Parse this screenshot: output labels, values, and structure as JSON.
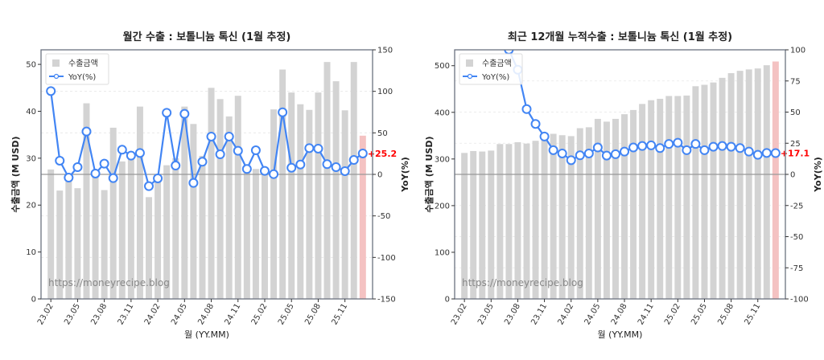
{
  "chart_data": [
    {
      "type": "bar+line",
      "title": "월간 수출 : 보톨니늄 톡신 (1월 추정)",
      "xlabel": "월 (YY.MM)",
      "ylabel": "수출금액 (M USD)",
      "y2label": "YoY(%)",
      "watermark": "https://moneyrecipe.blog",
      "categories": [
        "23.02",
        "23.03",
        "23.04",
        "23.05",
        "23.06",
        "23.07",
        "23.08",
        "23.09",
        "23.10",
        "23.11",
        "23.12",
        "24.01",
        "24.02",
        "24.03",
        "24.04",
        "24.05",
        "24.06",
        "24.07",
        "24.08",
        "24.09",
        "24.10",
        "24.11",
        "24.12",
        "25.01",
        "25.02",
        "25.03",
        "25.04",
        "25.05",
        "25.06",
        "25.07",
        "25.08",
        "25.09",
        "25.10",
        "25.11",
        "25.12",
        "26.01"
      ],
      "xticks": [
        "23.02",
        "23.05",
        "23.08",
        "23.11",
        "24.02",
        "24.05",
        "24.08",
        "24.11",
        "25.02",
        "25.05",
        "25.08",
        "25.11"
      ],
      "ylim": [
        0,
        53.1
      ],
      "yticks": [
        0,
        10,
        20,
        30,
        40,
        50
      ],
      "y2lim": [
        -150,
        150
      ],
      "y2ticks": [
        -150,
        -100,
        -50,
        0,
        50,
        100,
        150
      ],
      "series": [
        {
          "name": "수출금액",
          "kind": "bar",
          "color": "#d3d3d3",
          "highlight_last_color": "#f4c2c2",
          "values": [
            27.6,
            23.1,
            25.8,
            23.6,
            41.7,
            26.3,
            23.2,
            36.5,
            29.3,
            30.2,
            41.0,
            21.7,
            25.8,
            28.5,
            30.0,
            41.0,
            37.3,
            30.5,
            45.0,
            42.6,
            38.9,
            43.3,
            28.5,
            27.7,
            27.0,
            40.4,
            48.9,
            44.0,
            41.5,
            40.3,
            44.0,
            50.5,
            46.4,
            40.2,
            50.5,
            34.8
          ]
        },
        {
          "name": "YoY(%)",
          "kind": "line",
          "axis": "right",
          "color": "#4285f4",
          "values": [
            100.3,
            16.5,
            -3.9,
            8.7,
            51.6,
            1.0,
            12.9,
            -4.5,
            29.7,
            22.6,
            25.8,
            -14.2,
            -4.8,
            74.2,
            10.6,
            72.9,
            -10.3,
            15.2,
            45.5,
            24.2,
            45.5,
            28.4,
            6.5,
            29.0,
            4.2,
            0.3,
            74.8,
            8.0,
            11.9,
            31.6,
            31.0,
            12.3,
            8.7,
            3.9,
            17.4,
            25.2
          ]
        }
      ],
      "annotation": "+25.2",
      "legend": "top-left"
    },
    {
      "type": "bar+line",
      "title": "최근 12개월 누적수출 : 보톨니늄 톡신 (1월 추정)",
      "xlabel": "월 (YY.MM)",
      "ylabel": "수출금액 (M USD)",
      "y2label": "YoY(%)",
      "watermark": "https://moneyrecipe.blog",
      "categories": [
        "23.02",
        "23.03",
        "23.04",
        "23.05",
        "23.06",
        "23.07",
        "23.08",
        "23.09",
        "23.10",
        "23.11",
        "23.12",
        "24.01",
        "24.02",
        "24.03",
        "24.04",
        "24.05",
        "24.06",
        "24.07",
        "24.08",
        "24.09",
        "24.10",
        "24.11",
        "24.12",
        "25.01",
        "25.02",
        "25.03",
        "25.04",
        "25.05",
        "25.06",
        "25.07",
        "25.08",
        "25.09",
        "25.10",
        "25.11",
        "25.12",
        "26.01"
      ],
      "xticks": [
        "23.02",
        "23.05",
        "23.08",
        "23.11",
        "24.02",
        "24.05",
        "24.08",
        "24.11",
        "25.02",
        "25.05",
        "25.08",
        "25.11"
      ],
      "ylim": [
        0,
        534
      ],
      "yticks": [
        0,
        100,
        200,
        300,
        400,
        500
      ],
      "y2lim": [
        -100,
        100
      ],
      "y2ticks": [
        -100,
        -75,
        -50,
        -25,
        0,
        25,
        50,
        75,
        100
      ],
      "series": [
        {
          "name": "수출금액",
          "kind": "bar",
          "color": "#d3d3d3",
          "highlight_last_color": "#f4c2c2",
          "values": [
            313,
            317,
            316,
            318,
            332,
            332,
            336,
            333,
            339,
            345,
            354,
            351,
            349,
            366,
            368,
            386,
            380,
            386,
            396,
            405,
            418,
            426,
            429,
            435,
            435,
            436,
            456,
            459,
            464,
            474,
            484,
            489,
            492,
            494,
            501,
            509
          ]
        },
        {
          "name": "YoY(%)",
          "kind": "line",
          "axis": "right",
          "color": "#4285f4",
          "values": [
            null,
            null,
            null,
            null,
            null,
            100.1,
            84.0,
            52.4,
            40.5,
            30.4,
            19.4,
            16.8,
            11.4,
            15.3,
            16.8,
            21.6,
            15.1,
            16.2,
            18.3,
            21.6,
            22.8,
            23.3,
            21.1,
            24.4,
            25.4,
            19.4,
            24.4,
            19.4,
            22.2,
            22.8,
            22.2,
            21.1,
            18.3,
            15.7,
            17.2,
            17.1
          ]
        }
      ],
      "annotation": "+17.1",
      "legend": "top-left"
    }
  ]
}
